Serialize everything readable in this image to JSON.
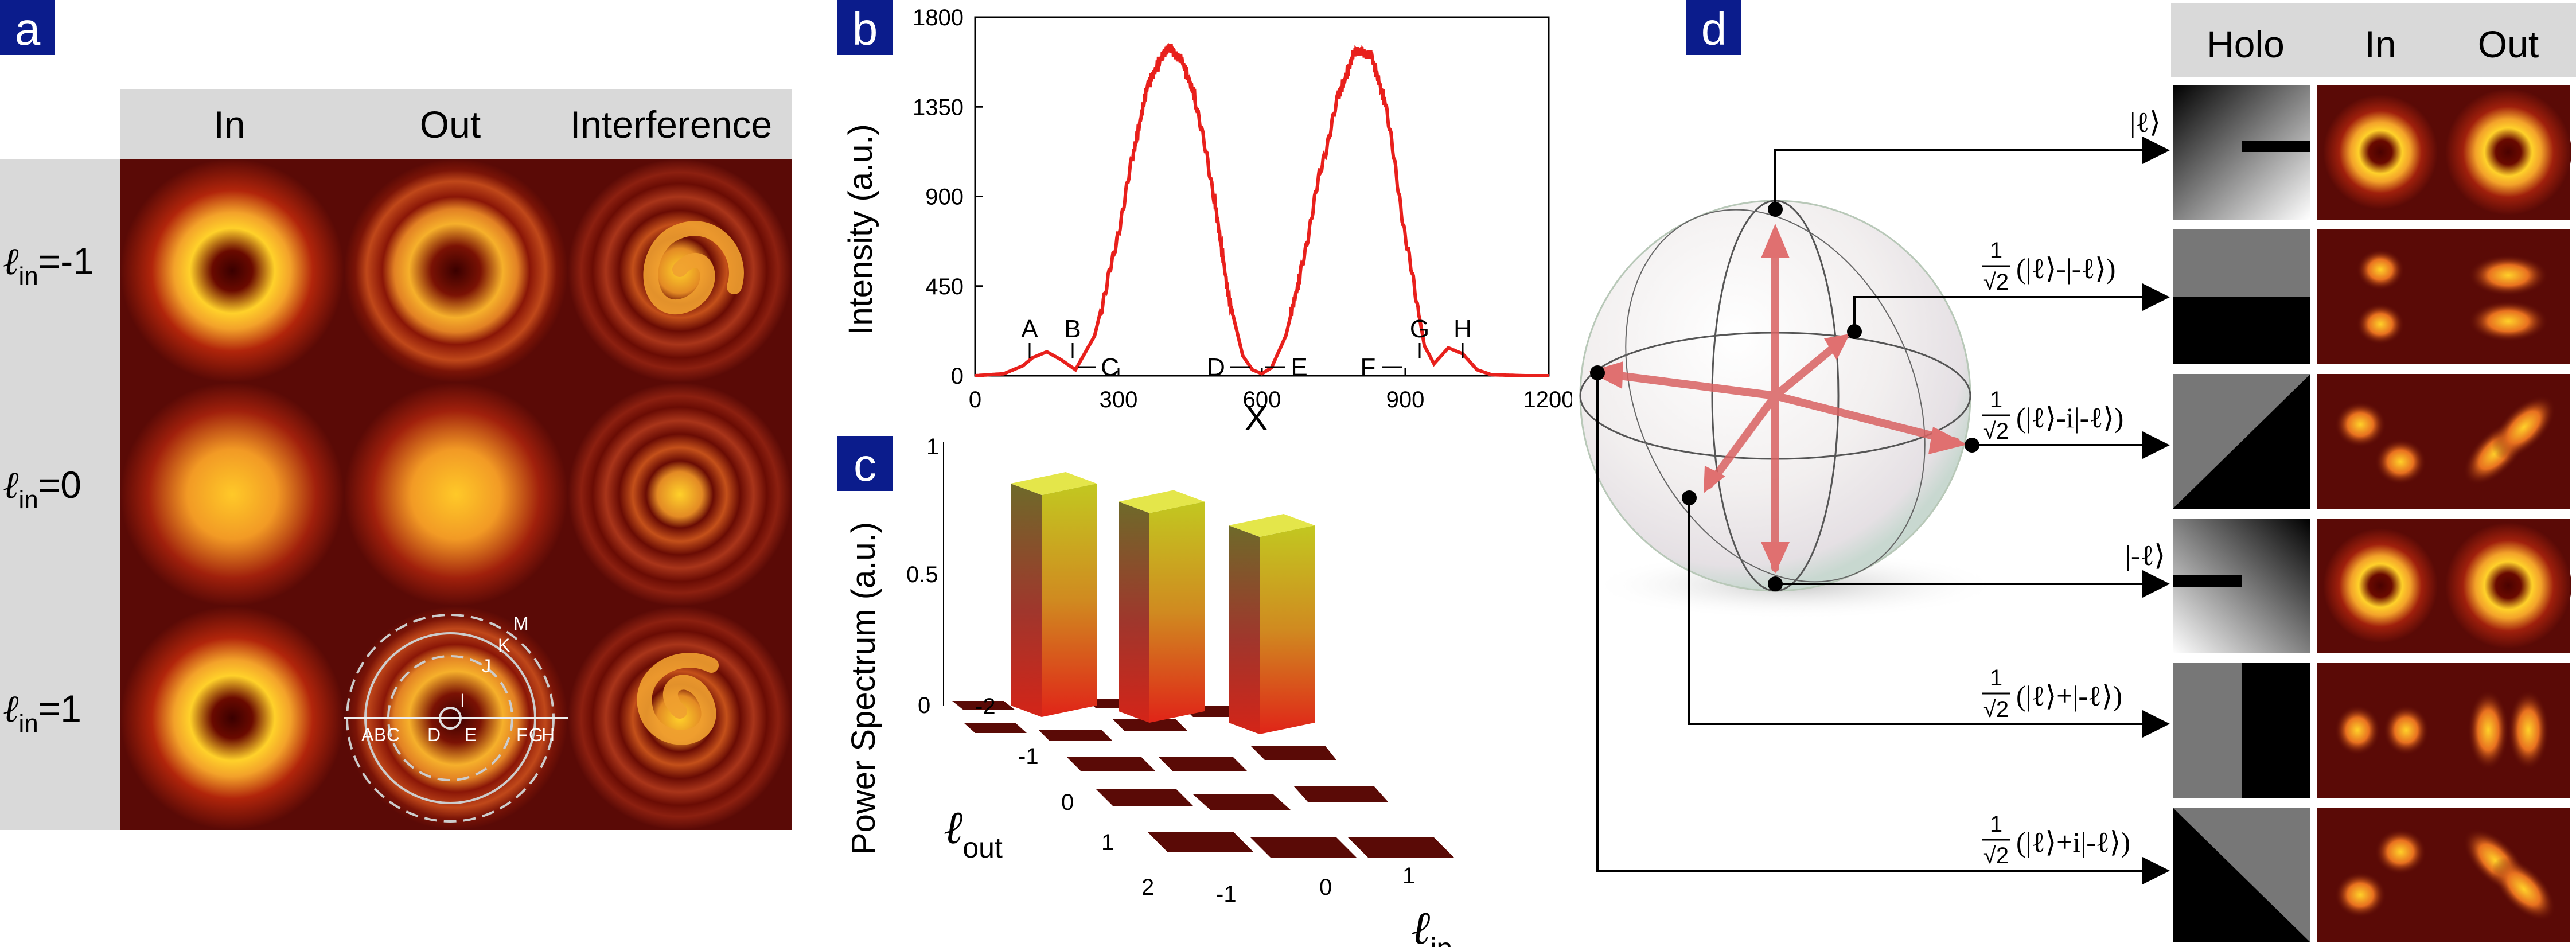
{
  "colors": {
    "panel_label_bg": "#0b1c8c",
    "curve": "#e8201c",
    "header_bg": "#d9d9d9"
  },
  "panel_a": {
    "label": "a",
    "col_headers": [
      "In",
      "Out",
      "Interference"
    ],
    "row_labels": [
      {
        "sym": "ℓ",
        "sub": "in",
        "val": "=-1"
      },
      {
        "sym": "ℓ",
        "sub": "in",
        "val": "=0"
      },
      {
        "sym": "ℓ",
        "sub": "in",
        "val": "=1"
      }
    ],
    "overlay_letters": [
      "A",
      "B",
      "C",
      "D",
      "E",
      "F",
      "G",
      "H",
      "I",
      "J",
      "K",
      "M"
    ]
  },
  "panel_b": {
    "label": "b"
  },
  "panel_c": {
    "label": "c"
  },
  "panel_d": {
    "label": "d",
    "col_headers": [
      "Holo",
      "In",
      "Out"
    ],
    "state_labels": [
      {
        "prefix": "",
        "frac": false,
        "text": "|ℓ⟩"
      },
      {
        "prefix": "1",
        "frac": true,
        "text": "(|ℓ⟩-|-ℓ⟩)"
      },
      {
        "prefix": "1",
        "frac": true,
        "text": "(|ℓ⟩-i|-ℓ⟩)"
      },
      {
        "prefix": "",
        "frac": false,
        "text": "|-ℓ⟩"
      },
      {
        "prefix": "1",
        "frac": true,
        "text": "(|ℓ⟩+|-ℓ⟩)"
      },
      {
        "prefix": "1",
        "frac": true,
        "text": "(|ℓ⟩+i|-ℓ⟩)"
      }
    ],
    "sqrt2": "√2"
  },
  "chart_data": [
    {
      "type": "line",
      "panel": "b",
      "title": "",
      "xlabel": "X",
      "ylabel": "Intensity (a.u.)",
      "xlim": [
        0,
        1200
      ],
      "ylim": [
        0,
        1800
      ],
      "xticks": [
        0,
        300,
        600,
        900,
        1200
      ],
      "yticks": [
        0,
        450,
        900,
        1350,
        1800
      ],
      "x": [
        0,
        60,
        100,
        120,
        150,
        180,
        210,
        250,
        290,
        330,
        360,
        390,
        410,
        430,
        460,
        500,
        530,
        560,
        580,
        600,
        620,
        650,
        680,
        720,
        760,
        790,
        810,
        830,
        860,
        900,
        940,
        960,
        990,
        1020,
        1050,
        1080,
        1150,
        1200
      ],
      "y": [
        0,
        10,
        50,
        90,
        120,
        80,
        30,
        200,
        600,
        1100,
        1450,
        1600,
        1640,
        1600,
        1400,
        900,
        400,
        100,
        30,
        10,
        40,
        200,
        500,
        1000,
        1400,
        1600,
        1640,
        1600,
        1350,
        700,
        150,
        60,
        140,
        110,
        30,
        5,
        0,
        0
      ],
      "annotations": [
        "A",
        "B",
        "C",
        "D",
        "E",
        "F",
        "G",
        "H"
      ]
    },
    {
      "type": "bar3d",
      "panel": "c",
      "title": "",
      "xlabel": "ℓ_out",
      "ylabel": "ℓ_in",
      "zlabel": "Power Spectrum (a.u.)",
      "zticks": [
        "0",
        "0.5",
        "1"
      ],
      "l_out": [
        -2,
        -1,
        0,
        1,
        2
      ],
      "l_in": [
        -1,
        0,
        1
      ],
      "bars": [
        {
          "l_out": -1,
          "l_in": -1,
          "value": 0.9
        },
        {
          "l_out": 0,
          "l_in": 0,
          "value": 0.85
        },
        {
          "l_out": 1,
          "l_in": 1,
          "value": 0.8
        }
      ]
    }
  ]
}
